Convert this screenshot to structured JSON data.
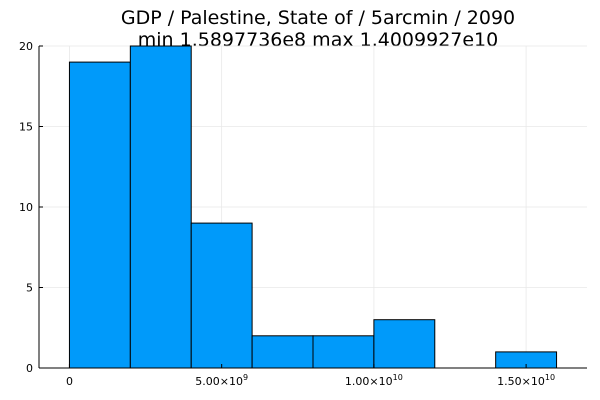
{
  "chart_data": {
    "type": "bar",
    "title_lines": [
      "GDP / Palestine, State of / 5arcmin / 2090",
      "min 1.5897736e8  max 1.4009927e10"
    ],
    "xlabel": "",
    "ylabel": "",
    "bins": [
      {
        "x0": 0,
        "x1": 2000000000,
        "count": 19
      },
      {
        "x0": 2000000000,
        "x1": 4000000000,
        "count": 20
      },
      {
        "x0": 4000000000,
        "x1": 6000000000,
        "count": 9
      },
      {
        "x0": 6000000000,
        "x1": 8000000000,
        "count": 2
      },
      {
        "x0": 8000000000,
        "x1": 10000000000,
        "count": 2
      },
      {
        "x0": 10000000000,
        "x1": 12000000000,
        "count": 3
      },
      {
        "x0": 12000000000,
        "x1": 14000000000,
        "count": 0
      },
      {
        "x0": 14000000000,
        "x1": 16000000000,
        "count": 1
      }
    ],
    "xlim": [
      -1000000000,
      17000000000
    ],
    "ylim": [
      0,
      20
    ],
    "x_ticks": [
      {
        "value": 0,
        "mantissa": "0",
        "exponent": ""
      },
      {
        "value": 5000000000,
        "mantissa": "5.00×10",
        "exponent": "9"
      },
      {
        "value": 10000000000,
        "mantissa": "1.00×10",
        "exponent": "10"
      },
      {
        "value": 15000000000,
        "mantissa": "1.50×10",
        "exponent": "10"
      }
    ],
    "y_ticks": [
      {
        "value": 0,
        "label": "0"
      },
      {
        "value": 5,
        "label": "5"
      },
      {
        "value": 10,
        "label": "10"
      },
      {
        "value": 15,
        "label": "15"
      },
      {
        "value": 20,
        "label": "20"
      }
    ],
    "grid": true,
    "legend": "none",
    "colors": {
      "bar_fill": "#009AFA",
      "bar_stroke": "#000000",
      "grid": "#e8e8e8",
      "axis": "#000000"
    }
  }
}
